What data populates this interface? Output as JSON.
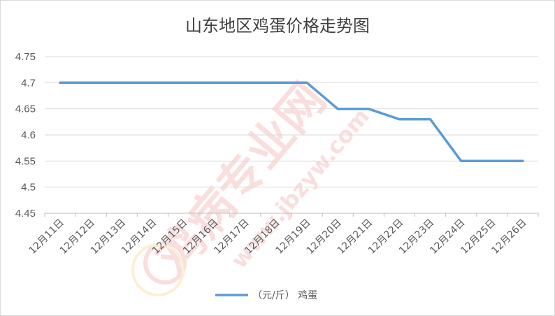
{
  "chart_data": {
    "type": "line",
    "title": "山东地区鸡蛋价格走势图",
    "categories": [
      "12月11日",
      "12月12日",
      "12月13日",
      "12月14日",
      "12月15日",
      "12月16日",
      "12月17日",
      "12月18日",
      "12月19日",
      "12月20日",
      "12月21日",
      "12月22日",
      "12月23日",
      "12月24日",
      "12月25日",
      "12月26日"
    ],
    "series": [
      {
        "name": "（元/斤） 鸡蛋",
        "color": "#5b9bd5",
        "values": [
          4.7,
          4.7,
          4.7,
          4.7,
          4.7,
          4.7,
          4.7,
          4.7,
          4.7,
          4.65,
          4.65,
          4.63,
          4.63,
          4.55,
          4.55,
          4.55
        ]
      }
    ],
    "ylim": [
      4.45,
      4.75
    ],
    "yticks": [
      "4.45",
      "4.5",
      "4.55",
      "4.6",
      "4.65",
      "4.7",
      "4.75"
    ],
    "grid": true,
    "legend": "bottom"
  },
  "watermark": {
    "main": "鸡病专业网",
    "url": "www.jbzyw.com",
    "color": "#e5383b"
  }
}
